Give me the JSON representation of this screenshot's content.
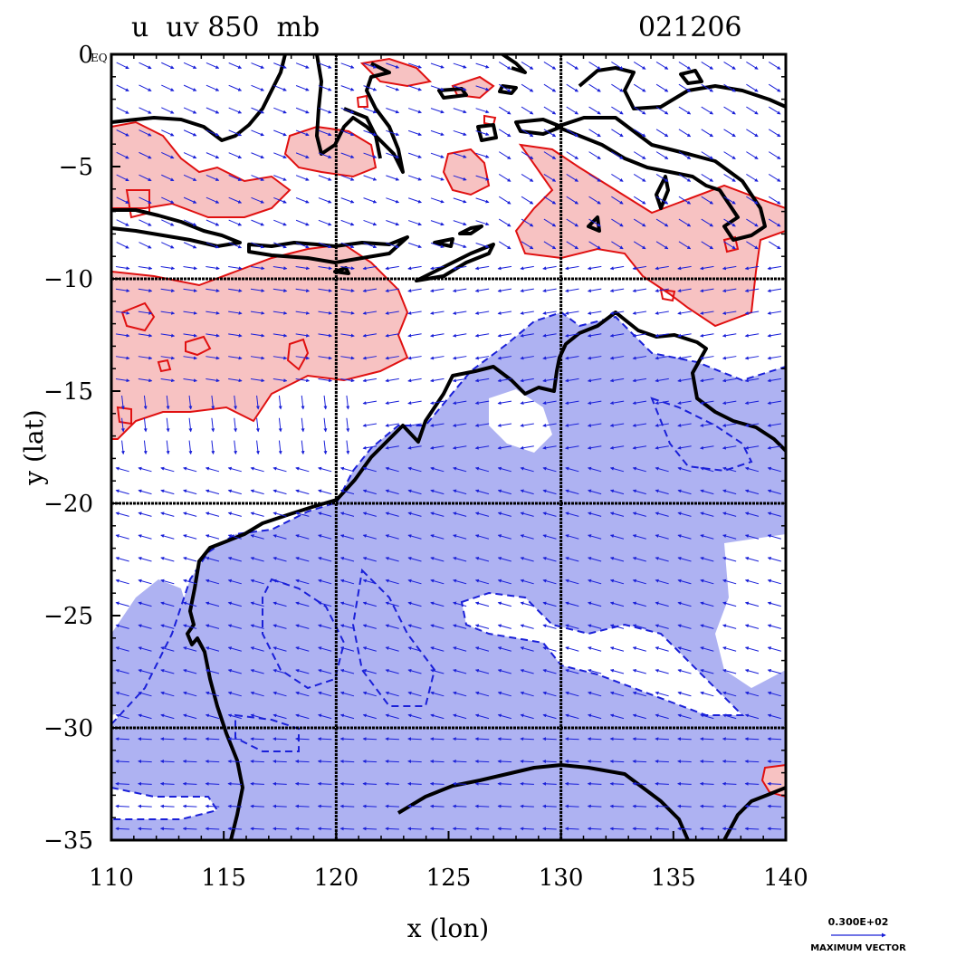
{
  "header": {
    "left_title": "u  uv 850  mb",
    "right_title": "021206"
  },
  "axes": {
    "xlabel": "x (lon)",
    "ylabel": "y (lat)",
    "corner_label": "EQ",
    "xlim": [
      110,
      140
    ],
    "ylim": [
      -35,
      0
    ],
    "x_ticks": [
      "110",
      "115",
      "120",
      "125",
      "130",
      "135",
      "140"
    ],
    "y_ticks": [
      "0",
      "−5",
      "−10",
      "−15",
      "−20",
      "−25",
      "−30",
      "−35"
    ],
    "grid_lines_lon": [
      120,
      130
    ],
    "grid_lines_lat": [
      -10,
      -20,
      -30
    ]
  },
  "legend": {
    "max_value": "0.300E+02",
    "label": "MAXIMUM VECTOR"
  },
  "colors": {
    "positive_fill": "#f7c2c2",
    "positive_contour": "#e01010",
    "negative_fill": "#aeb2f2",
    "negative_contour": "#1a20d8",
    "coastline": "#000000",
    "vector": "#1a20d8"
  },
  "chart_data": {
    "type": "map",
    "field": "u wind component with uv wind vectors at 850 mb",
    "date_code": "021206",
    "level": "850 mb",
    "region": {
      "lon": [
        110,
        140
      ],
      "lat": [
        -35,
        0
      ]
    },
    "shading": [
      {
        "sign": "positive",
        "color": "red",
        "areas": [
          "western Indian Ocean near Java (110–119E, 3–9S)",
          "Timor Sea band (110–125E, 10–17S)",
          "Banda Sea / Arafura (128–140E, 5–14S)",
          "far southeast corner (139–140E, 33–34S)"
        ]
      },
      {
        "sign": "negative",
        "color": "blue",
        "areas": [
          "Western and central Australia (114–140E, 14–35S)",
          "Southern Ocean strip south of Australia (110–130E, 30–35S)"
        ]
      }
    ]
  }
}
